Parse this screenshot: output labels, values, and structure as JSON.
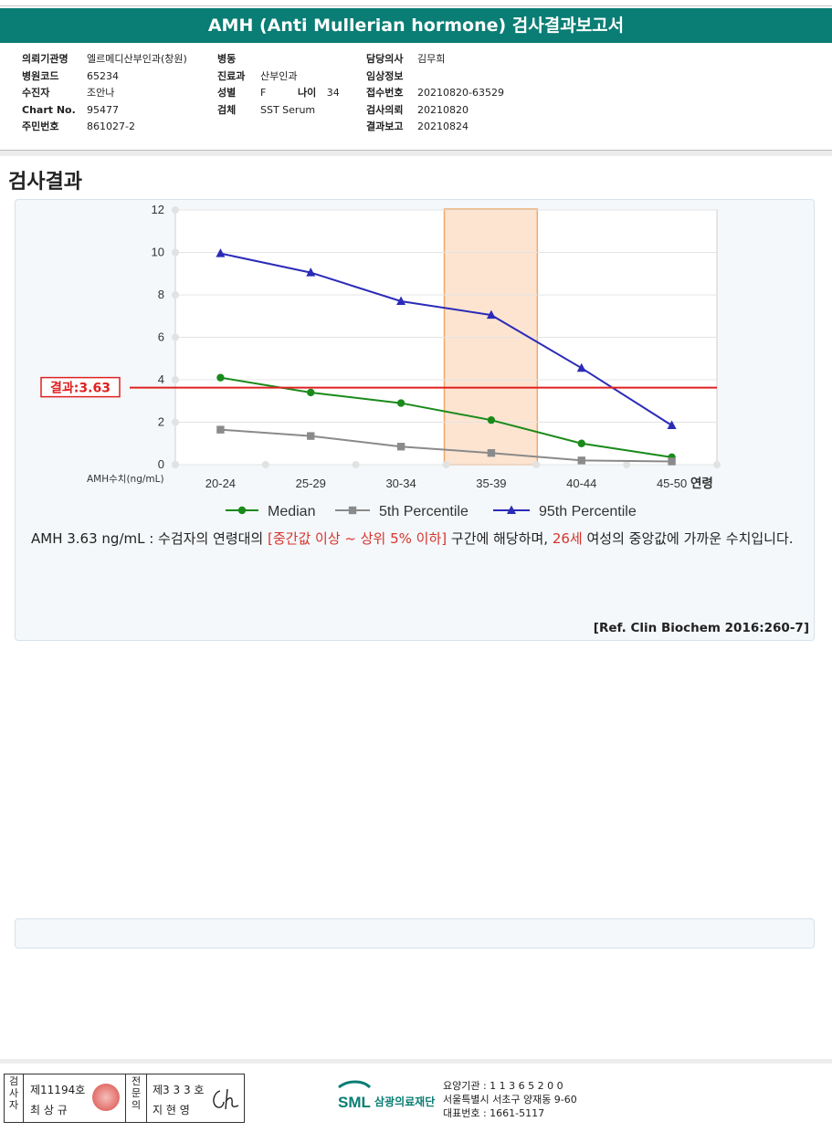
{
  "report": {
    "title": "AMH (Anti Mullerian hormone) 검사결과보고서"
  },
  "info": {
    "col1": [
      {
        "label": "의뢰기관명",
        "value": "엘르메디산부인과(창원)"
      },
      {
        "label": "병원코드",
        "value": "65234"
      },
      {
        "label": "수진자",
        "value": "조안나"
      },
      {
        "label": "Chart No.",
        "value": "95477"
      },
      {
        "label": "주민번호",
        "value": "861027-2"
      }
    ],
    "col2": [
      {
        "label": "병동",
        "value": ""
      },
      {
        "label": "진료과",
        "value": "산부인과"
      },
      {
        "label": "성별",
        "value": "F"
      },
      {
        "label": "검체",
        "value": "SST Serum"
      }
    ],
    "age": {
      "label": "나이",
      "value": "34"
    },
    "col3": [
      {
        "label": "담당의사",
        "value": "김무희"
      },
      {
        "label": "임상정보",
        "value": ""
      },
      {
        "label": "접수번호",
        "value": "20210820-63529"
      },
      {
        "label": "검사의뢰",
        "value": "20210820"
      },
      {
        "label": "결과보고",
        "value": "20210824"
      }
    ]
  },
  "section": {
    "title": "검사결과"
  },
  "chart_data": {
    "type": "line",
    "categories": [
      "20-24",
      "25-29",
      "30-34",
      "35-39",
      "40-44",
      "45-50"
    ],
    "ylabel": "AMH수치(ng/mL)",
    "xlabel": "연령",
    "ylim": [
      0,
      12
    ],
    "yticks": [
      0,
      2,
      4,
      6,
      8,
      10,
      12
    ],
    "grid": true,
    "legend_position": "bottom",
    "series": [
      {
        "name": "Median",
        "color": "#1a8a1a",
        "marker": "circle",
        "values": [
          4.1,
          3.4,
          2.9,
          2.1,
          1.0,
          0.35
        ]
      },
      {
        "name": "5th Percentile",
        "color": "#8a8a8a",
        "marker": "square",
        "values": [
          1.65,
          1.35,
          0.85,
          0.55,
          0.2,
          0.15
        ]
      },
      {
        "name": "95th Percentile",
        "color": "#2b2bb8",
        "marker": "triangle",
        "values": [
          9.95,
          9.05,
          7.7,
          7.05,
          4.55,
          1.85
        ]
      }
    ],
    "highlight_category": "35-39",
    "result": {
      "label": "결과:3.63",
      "value": 3.63,
      "color": "#e02020"
    }
  },
  "description": {
    "part1": "AMH  3.63 ng/mL : 수검자의 연령대의 ",
    "red1": "[중간값 이상 ~ 상위 5% 이하]",
    "part2": " 구간에 해당하며, ",
    "red2": "26세",
    "part3": " 여성의 중앙값에 가까운 수치입니다."
  },
  "reference": "[Ref. Clin Biochem 2016:260-7]",
  "footer": {
    "examiner_label": "검사자",
    "examiner_no": "제11194호",
    "examiner_name": "최 상 규",
    "doctor_label": "전문의",
    "doctor_no": "제3 3 3 호",
    "doctor_name": "지 현 영",
    "logo_text": "SML",
    "company": "삼광의료재단",
    "contact": [
      "요양기관 : 1 1 3 6 5 2 0 0",
      "서울특별시 서초구 양재동 9-60",
      "대표번호 : 1661-5117"
    ]
  }
}
